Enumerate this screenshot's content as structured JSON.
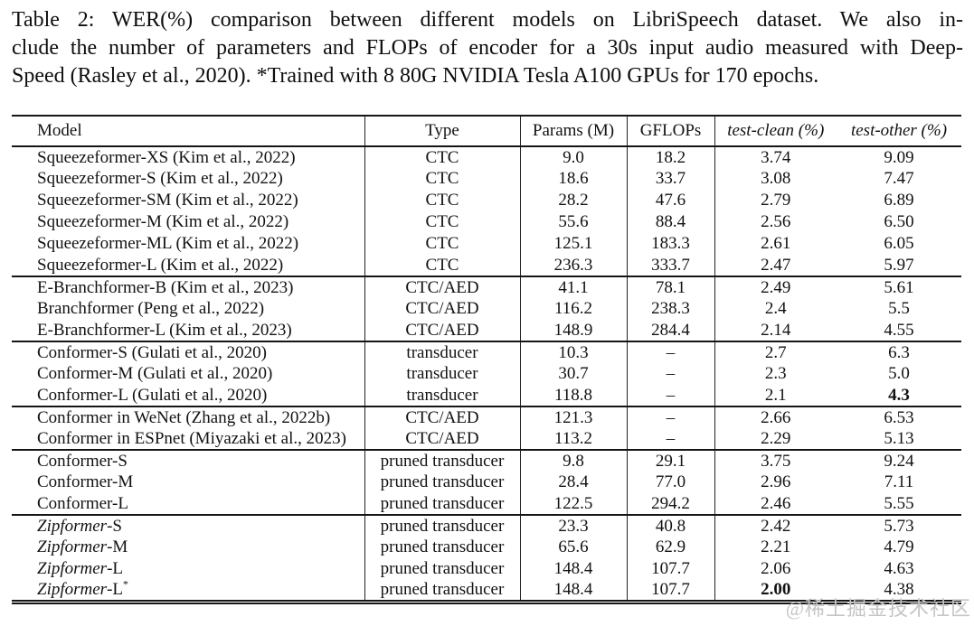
{
  "caption": {
    "lines": [
      "Table 2:  WER(%) comparison between different models on LibriSpeech dataset.  We also in-",
      "clude the number of parameters and FLOPs of encoder for a 30s input audio measured with Deep-",
      "Speed (Rasley et al., 2020). *Trained with 8 80G NVIDIA Tesla A100 GPUs for 170 epochs."
    ]
  },
  "table": {
    "columns": [
      "Model",
      "Type",
      "Params (M)",
      "GFLOPs",
      "test-clean (%)",
      "test-other (%)"
    ],
    "missing_value": "–",
    "sections": [
      {
        "name": "squeezeformer",
        "rows": [
          {
            "model": "Squeezeformer-XS (Kim et al., 2022)",
            "type": "CTC",
            "params": "9.0",
            "gflops": "18.2",
            "test_clean": "3.74",
            "test_other": "9.09"
          },
          {
            "model": "Squeezeformer-S (Kim et al., 2022)",
            "type": "CTC",
            "params": "18.6",
            "gflops": "33.7",
            "test_clean": "3.08",
            "test_other": "7.47"
          },
          {
            "model": "Squeezeformer-SM (Kim et al., 2022)",
            "type": "CTC",
            "params": "28.2",
            "gflops": "47.6",
            "test_clean": "2.79",
            "test_other": "6.89"
          },
          {
            "model": "Squeezeformer-M (Kim et al., 2022)",
            "type": "CTC",
            "params": "55.6",
            "gflops": "88.4",
            "test_clean": "2.56",
            "test_other": "6.50"
          },
          {
            "model": "Squeezeformer-ML (Kim et al., 2022)",
            "type": "CTC",
            "params": "125.1",
            "gflops": "183.3",
            "test_clean": "2.61",
            "test_other": "6.05"
          },
          {
            "model": "Squeezeformer-L (Kim et al., 2022)",
            "type": "CTC",
            "params": "236.3",
            "gflops": "333.7",
            "test_clean": "2.47",
            "test_other": "5.97"
          }
        ]
      },
      {
        "name": "branchformer",
        "rows": [
          {
            "model": "E-Branchformer-B (Kim et al., 2023)",
            "type": "CTC/AED",
            "params": "41.1",
            "gflops": "78.1",
            "test_clean": "2.49",
            "test_other": "5.61"
          },
          {
            "model": "Branchformer (Peng et al., 2022)",
            "type": "CTC/AED",
            "params": "116.2",
            "gflops": "238.3",
            "test_clean": "2.4",
            "test_other": "5.5"
          },
          {
            "model": "E-Branchformer-L (Kim et al., 2023)",
            "type": "CTC/AED",
            "params": "148.9",
            "gflops": "284.4",
            "test_clean": "2.14",
            "test_other": "4.55"
          }
        ]
      },
      {
        "name": "conformer-transducer",
        "rows": [
          {
            "model": "Conformer-S (Gulati et al., 2020)",
            "type": "transducer",
            "params": "10.3",
            "gflops": "–",
            "test_clean": "2.7",
            "test_other": "6.3"
          },
          {
            "model": "Conformer-M (Gulati et al., 2020)",
            "type": "transducer",
            "params": "30.7",
            "gflops": "–",
            "test_clean": "2.3",
            "test_other": "5.0"
          },
          {
            "model": "Conformer-L (Gulati et al., 2020)",
            "type": "transducer",
            "params": "118.8",
            "gflops": "–",
            "test_clean": "2.1",
            "test_other": "4.3",
            "bold": [
              "test_other"
            ]
          }
        ]
      },
      {
        "name": "conformer-toolkits",
        "rows": [
          {
            "model": "Conformer in WeNet (Zhang et al., 2022b)",
            "type": "CTC/AED",
            "params": "121.3",
            "gflops": "–",
            "test_clean": "2.66",
            "test_other": "6.53"
          },
          {
            "model": "Conformer in ESPnet (Miyazaki et al., 2023)",
            "type": "CTC/AED",
            "params": "113.2",
            "gflops": "–",
            "test_clean": "2.29",
            "test_other": "5.13"
          }
        ]
      },
      {
        "name": "conformer-pruned",
        "rows": [
          {
            "model": "Conformer-S",
            "type": "pruned transducer",
            "params": "9.8",
            "gflops": "29.1",
            "test_clean": "3.75",
            "test_other": "9.24"
          },
          {
            "model": "Conformer-M",
            "type": "pruned transducer",
            "params": "28.4",
            "gflops": "77.0",
            "test_clean": "2.96",
            "test_other": "7.11"
          },
          {
            "model": "Conformer-L",
            "type": "pruned transducer",
            "params": "122.5",
            "gflops": "294.2",
            "test_clean": "2.46",
            "test_other": "5.55"
          }
        ]
      },
      {
        "name": "zipformer",
        "rows": [
          {
            "model_italic": "Zipformer",
            "model": "-S",
            "type": "pruned transducer",
            "params": "23.3",
            "gflops": "40.8",
            "test_clean": "2.42",
            "test_other": "5.73"
          },
          {
            "model_italic": "Zipformer",
            "model": "-M",
            "type": "pruned transducer",
            "params": "65.6",
            "gflops": "62.9",
            "test_clean": "2.21",
            "test_other": "4.79"
          },
          {
            "model_italic": "Zipformer",
            "model": "-L",
            "type": "pruned transducer",
            "params": "148.4",
            "gflops": "107.7",
            "test_clean": "2.06",
            "test_other": "4.63"
          },
          {
            "model_italic": "Zipformer",
            "model": "-L",
            "model_sup": "*",
            "type": "pruned transducer",
            "params": "148.4",
            "gflops": "107.7",
            "test_clean": "2.00",
            "test_other": "4.38",
            "bold": [
              "test_clean"
            ]
          }
        ]
      }
    ]
  },
  "watermark": "@稀土掘金技术社区"
}
